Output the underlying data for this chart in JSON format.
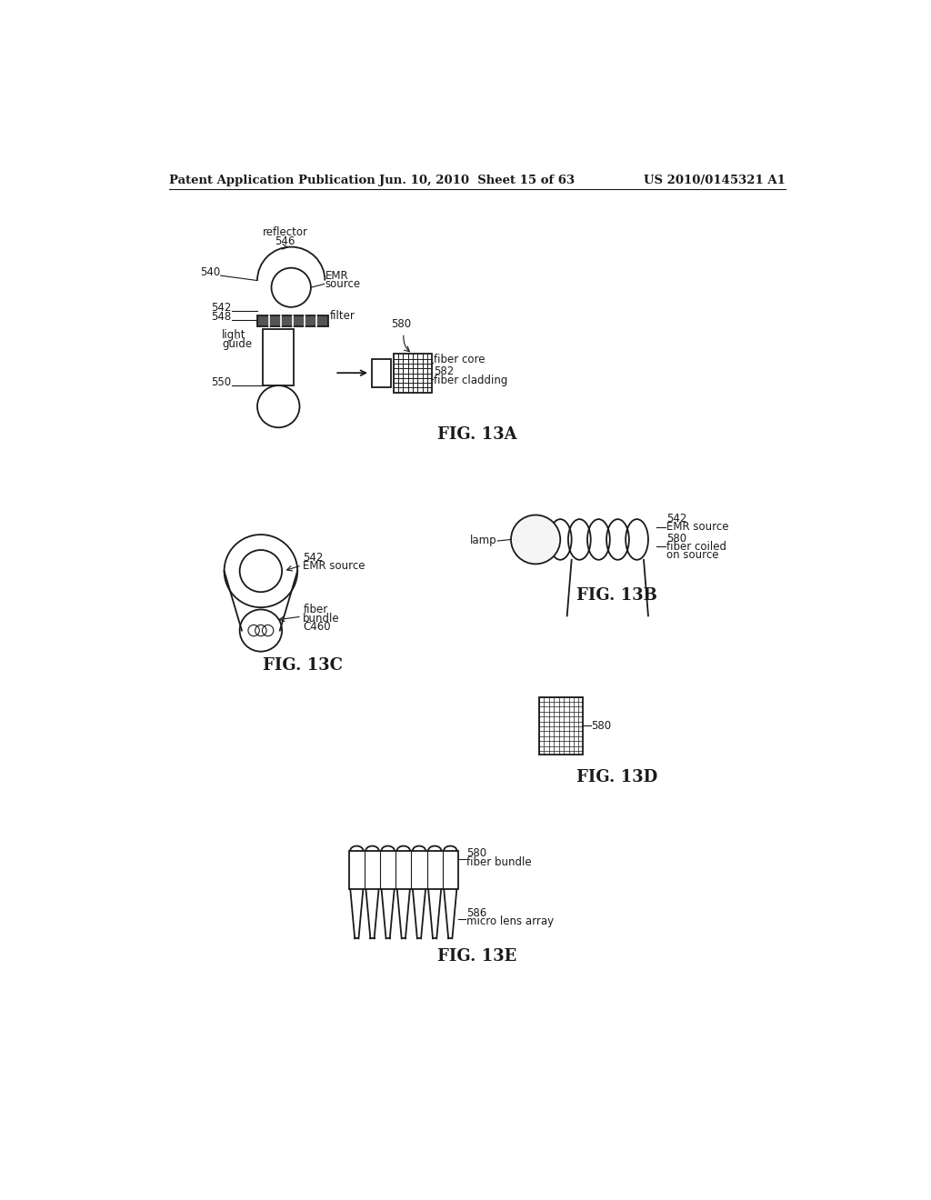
{
  "bg_color": "#ffffff",
  "line_color": "#1a1a1a",
  "header_left": "Patent Application Publication",
  "header_mid": "Jun. 10, 2010  Sheet 15 of 63",
  "header_right": "US 2010/0145321 A1",
  "font_size_header": 9.5,
  "font_size_fig": 13,
  "font_size_label": 8.5
}
